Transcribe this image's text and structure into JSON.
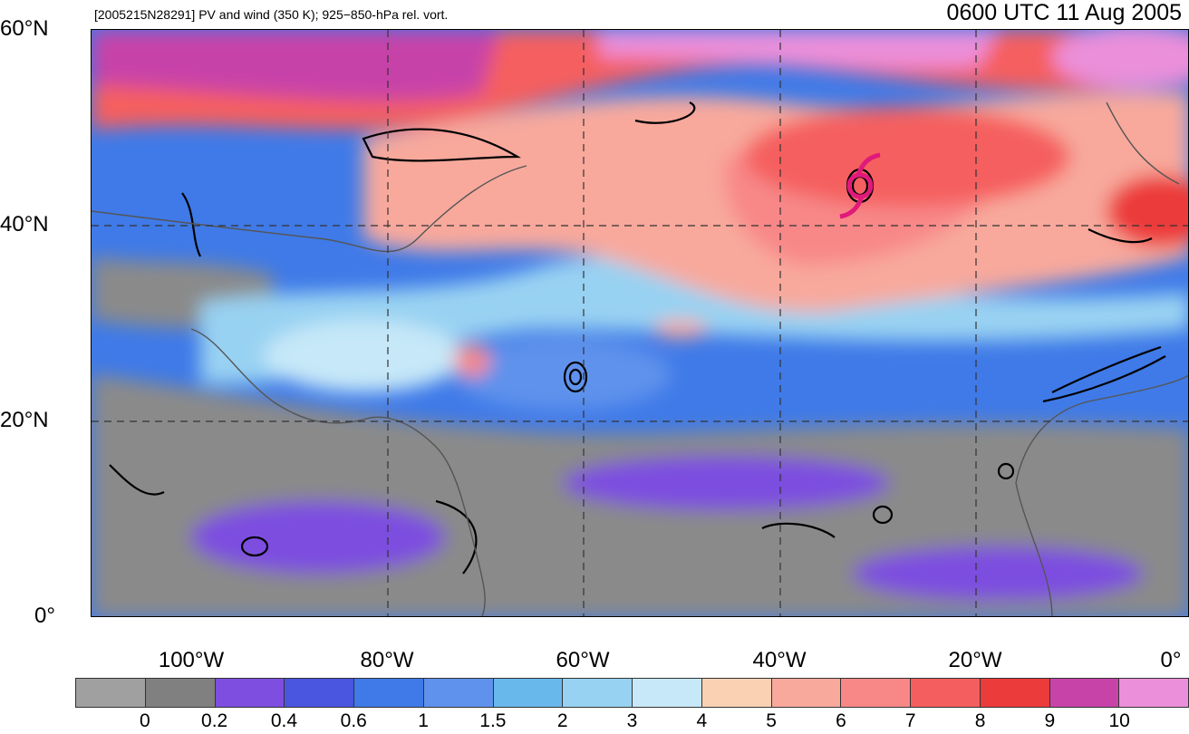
{
  "header": {
    "caption": "[2005215N28291] PV and wind (350 K); 925−850-hPa rel. vort.",
    "time": "0600 UTC 11 Aug 2005"
  },
  "map": {
    "latitude_labels": [
      "60°N",
      "40°N",
      "20°N",
      "0°"
    ],
    "longitude_labels": [
      "100°W",
      "80°W",
      "60°W",
      "40°W",
      "20°W",
      "0°"
    ],
    "storm_symbol": "tropical-cyclone-icon",
    "storm_color": "#e0197a"
  },
  "colorbar": {
    "colors": [
      "#a0a0a0",
      "#808080",
      "#7d4ee0",
      "#4a55e0",
      "#3f7ae8",
      "#5e92ec",
      "#68b8ec",
      "#98d2f2",
      "#c6e8f8",
      "#fbd1b3",
      "#f8a99c",
      "#f88888",
      "#f55e5e",
      "#ec3b3b",
      "#c743a8",
      "#eb8fda"
    ],
    "labels": [
      "0",
      "0.2",
      "0.4",
      "0.6",
      "1",
      "1.5",
      "2",
      "3",
      "4",
      "5",
      "6",
      "7",
      "8",
      "9",
      "10"
    ]
  }
}
